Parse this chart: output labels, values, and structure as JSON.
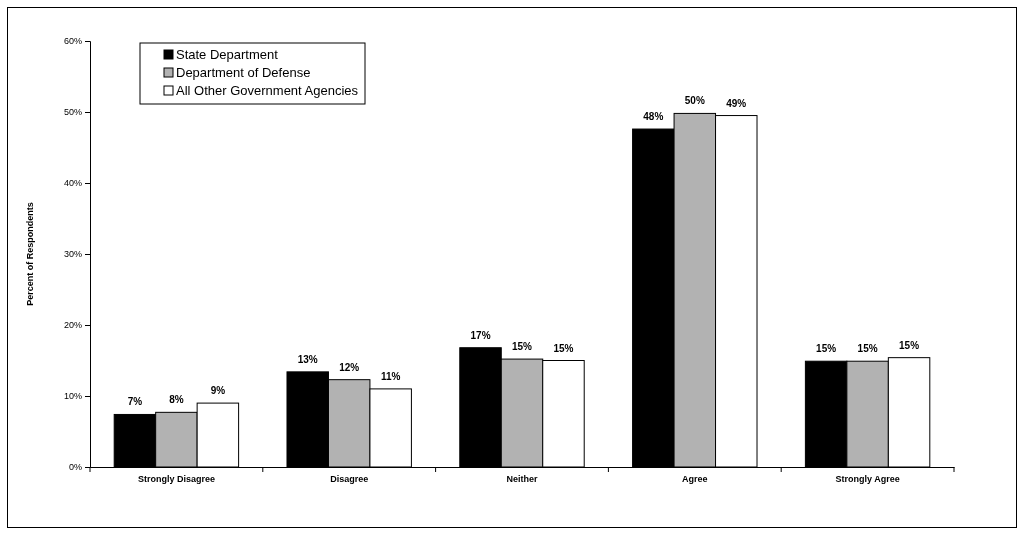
{
  "chart_data": {
    "type": "bar",
    "ylabel": "Percent of Respondents",
    "categories": [
      "Strongly Disagree",
      "Disagree",
      "Neither",
      "Agree",
      "Strongly Agree"
    ],
    "series": [
      {
        "name": "State Department",
        "color": "#000000",
        "values": [
          7.4,
          13.4,
          16.8,
          47.6,
          14.9
        ],
        "value_labels": [
          "7%",
          "13%",
          "17%",
          "48%",
          "15%"
        ]
      },
      {
        "name": "Department of Defense",
        "color": "#b2b2b2",
        "values": [
          7.7,
          12.3,
          15.2,
          49.8,
          14.9
        ],
        "value_labels": [
          "8%",
          "12%",
          "15%",
          "50%",
          "15%"
        ]
      },
      {
        "name": "All Other Government Agencies",
        "color": "#ffffff",
        "values": [
          9.0,
          11.0,
          15.0,
          49.5,
          15.4
        ],
        "value_labels": [
          "9%",
          "11%",
          "15%",
          "49%",
          "15%"
        ]
      }
    ],
    "ylim": [
      0,
      60
    ],
    "yticks": [
      {
        "value": 0,
        "label": "0%"
      },
      {
        "value": 10,
        "label": "10%"
      },
      {
        "value": 20,
        "label": "20%"
      },
      {
        "value": 30,
        "label": "30%"
      },
      {
        "value": 40,
        "label": "40%"
      },
      {
        "value": 50,
        "label": "50%"
      },
      {
        "value": 60,
        "label": "60%"
      }
    ],
    "grid": false,
    "legend": "top left"
  }
}
